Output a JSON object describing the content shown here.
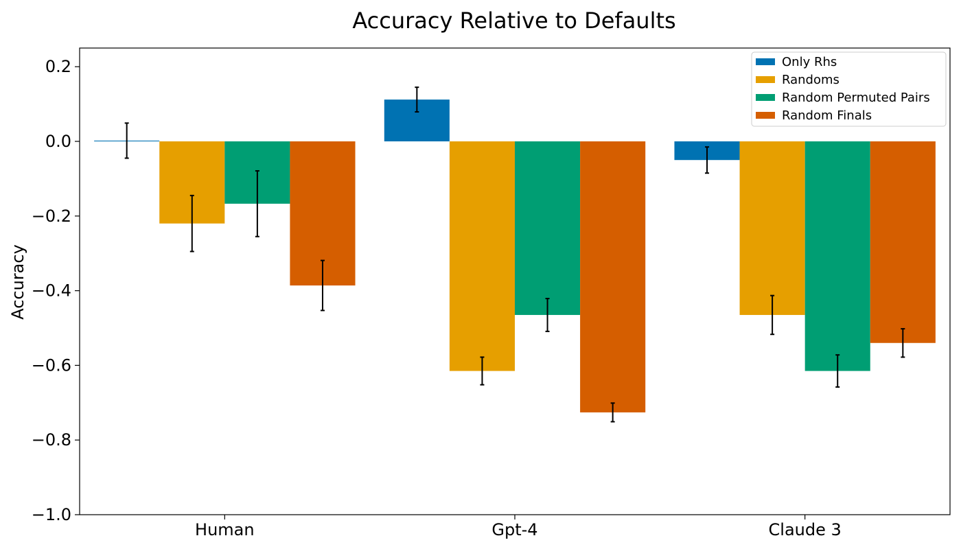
{
  "chart_data": {
    "type": "bar",
    "title": "Accuracy Relative to Defaults",
    "xlabel": "",
    "ylabel": "Accuracy",
    "ylim": [
      -1.0,
      0.25
    ],
    "yticks": [
      0.2,
      0.0,
      -0.2,
      -0.4,
      -0.6,
      -0.8,
      -1.0
    ],
    "ytick_labels": [
      "0.2",
      "0.0",
      "−0.2",
      "−0.4",
      "−0.6",
      "−0.8",
      "−1.0"
    ],
    "categories": [
      "Human",
      "Gpt-4",
      "Claude 3"
    ],
    "grid": false,
    "legend_position": "top-right",
    "series": [
      {
        "name": "Only Rhs",
        "color": "#0072b2",
        "values": [
          0.002,
          0.112,
          -0.05
        ],
        "errors": [
          0.047,
          0.033,
          0.035
        ]
      },
      {
        "name": "Randoms",
        "color": "#e69f00",
        "values": [
          -0.22,
          -0.615,
          -0.465
        ],
        "errors": [
          0.075,
          0.037,
          0.052
        ]
      },
      {
        "name": "Random Permuted Pairs",
        "color": "#009e73",
        "values": [
          -0.167,
          -0.465,
          -0.615
        ],
        "errors": [
          0.088,
          0.044,
          0.043
        ]
      },
      {
        "name": "Random Finals",
        "color": "#d55e00",
        "values": [
          -0.386,
          -0.726,
          -0.54
        ],
        "errors": [
          0.067,
          0.025,
          0.038
        ]
      }
    ]
  }
}
